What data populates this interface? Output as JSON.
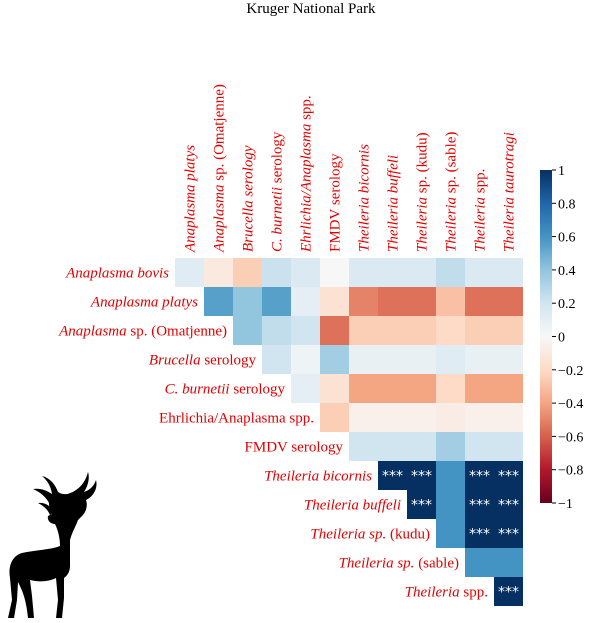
{
  "chart_data": {
    "type": "heatmap",
    "title": "Kruger National Park",
    "columns": [
      [
        {
          "t": "Anaplasma platys",
          "i": true
        }
      ],
      [
        {
          "t": "Anaplasma",
          "i": true
        },
        {
          "t": " sp. (Omatjenne)",
          "i": false
        }
      ],
      [
        {
          "t": "Brucella serology",
          "i": true
        }
      ],
      [
        {
          "t": "C. burnetii",
          "i": true
        },
        {
          "t": " serology",
          "i": false
        }
      ],
      [
        {
          "t": "Ehrlichia/Anaplasma",
          "i": true
        },
        {
          "t": " spp.",
          "i": false
        }
      ],
      [
        {
          "t": "FMDV serology",
          "i": false
        }
      ],
      [
        {
          "t": "Theileria bicornis",
          "i": true
        }
      ],
      [
        {
          "t": "Theileria buffeli",
          "i": true
        }
      ],
      [
        {
          "t": "Theileria",
          "i": true
        },
        {
          "t": " sp. (kudu)",
          "i": false
        }
      ],
      [
        {
          "t": "Theileria",
          "i": true
        },
        {
          "t": " sp. (sable)",
          "i": false
        }
      ],
      [
        {
          "t": "Theileria",
          "i": true
        },
        {
          "t": " spp.",
          "i": false
        }
      ],
      [
        {
          "t": "Theileria taurotragi",
          "i": true
        }
      ]
    ],
    "rows": [
      [
        {
          "t": "Anaplasma bovis",
          "i": true
        }
      ],
      [
        {
          "t": "Anaplasma platys",
          "i": true
        }
      ],
      [
        {
          "t": "Anaplasma",
          "i": true
        },
        {
          "t": " sp. (Omatjenne)",
          "i": false
        }
      ],
      [
        {
          "t": "Brucella",
          "i": true
        },
        {
          "t": " serology",
          "i": false
        }
      ],
      [
        {
          "t": "C. burnetii",
          "i": true
        },
        {
          "t": " serology",
          "i": false
        }
      ],
      [
        {
          "t": "Ehrlichia/Anaplasma",
          "i": false
        },
        {
          "t": " spp.",
          "i": false
        }
      ],
      [
        {
          "t": "FMDV serology",
          "i": false
        }
      ],
      [
        {
          "t": "Theileria bicornis",
          "i": true
        }
      ],
      [
        {
          "t": "Theileria buffeli",
          "i": true
        }
      ],
      [
        {
          "t": "Theileria sp.",
          "i": true
        },
        {
          "t": " (kudu)",
          "i": false
        }
      ],
      [
        {
          "t": "Theileria sp.",
          "i": true
        },
        {
          "t": " (sable)",
          "i": false
        }
      ],
      [
        {
          "t": "Theileria",
          "i": true
        },
        {
          "t": " spp.",
          "i": false
        }
      ]
    ],
    "values": [
      [
        0.12,
        -0.1,
        -0.25,
        0.22,
        0.15,
        0.0,
        0.15,
        0.15,
        0.15,
        0.25,
        0.15,
        0.15
      ],
      [
        null,
        0.55,
        0.4,
        0.55,
        0.1,
        -0.15,
        -0.5,
        -0.55,
        -0.55,
        -0.3,
        -0.55,
        -0.55
      ],
      [
        null,
        null,
        0.4,
        0.25,
        0.2,
        -0.55,
        -0.25,
        -0.25,
        -0.25,
        -0.2,
        -0.25,
        -0.25
      ],
      [
        null,
        null,
        null,
        0.2,
        0.05,
        0.35,
        0.08,
        0.08,
        0.08,
        0.12,
        0.08,
        0.08
      ],
      [
        null,
        null,
        null,
        null,
        0.1,
        -0.15,
        -0.4,
        -0.4,
        -0.4,
        -0.2,
        -0.4,
        -0.4
      ],
      [
        null,
        null,
        null,
        null,
        null,
        -0.25,
        -0.05,
        -0.05,
        -0.05,
        -0.08,
        -0.05,
        -0.05
      ],
      [
        null,
        null,
        null,
        null,
        null,
        null,
        0.2,
        0.2,
        0.2,
        0.35,
        0.2,
        0.2
      ],
      [
        null,
        null,
        null,
        null,
        null,
        null,
        null,
        1.0,
        1.0,
        0.6,
        1.0,
        1.0
      ],
      [
        null,
        null,
        null,
        null,
        null,
        null,
        null,
        null,
        1.0,
        0.6,
        1.0,
        1.0
      ],
      [
        null,
        null,
        null,
        null,
        null,
        null,
        null,
        null,
        null,
        0.6,
        1.0,
        1.0
      ],
      [
        null,
        null,
        null,
        null,
        null,
        null,
        null,
        null,
        null,
        null,
        0.6,
        0.6
      ],
      [
        null,
        null,
        null,
        null,
        null,
        null,
        null,
        null,
        null,
        null,
        null,
        1.0
      ]
    ],
    "stars": [
      [
        null,
        null,
        null,
        null,
        null,
        null,
        null,
        null,
        null,
        null,
        null,
        null
      ],
      [
        null,
        null,
        null,
        null,
        null,
        null,
        null,
        null,
        null,
        null,
        null,
        null
      ],
      [
        null,
        null,
        null,
        null,
        null,
        null,
        null,
        null,
        null,
        null,
        null,
        null
      ],
      [
        null,
        null,
        null,
        null,
        null,
        null,
        null,
        null,
        null,
        null,
        null,
        null
      ],
      [
        null,
        null,
        null,
        null,
        null,
        null,
        null,
        null,
        null,
        null,
        null,
        null
      ],
      [
        null,
        null,
        null,
        null,
        null,
        null,
        null,
        null,
        null,
        null,
        null,
        null
      ],
      [
        null,
        null,
        null,
        null,
        null,
        null,
        null,
        null,
        null,
        null,
        null,
        null
      ],
      [
        null,
        null,
        null,
        null,
        null,
        null,
        null,
        "***",
        "***",
        null,
        "***",
        "***"
      ],
      [
        null,
        null,
        null,
        null,
        null,
        null,
        null,
        null,
        "***",
        null,
        "***",
        "***"
      ],
      [
        null,
        null,
        null,
        null,
        null,
        null,
        null,
        null,
        null,
        null,
        "***",
        "***"
      ],
      [
        null,
        null,
        null,
        null,
        null,
        null,
        null,
        null,
        null,
        null,
        null,
        null
      ],
      [
        null,
        null,
        null,
        null,
        null,
        null,
        null,
        null,
        null,
        null,
        null,
        "***"
      ]
    ],
    "colorbar": {
      "ticks": [
        "1",
        "0.8",
        "0.6",
        "0.4",
        "0.2",
        "0",
        "−0.2",
        "−0.4",
        "−0.6",
        "−0.8",
        "−1"
      ],
      "range": [
        -1,
        1
      ]
    },
    "colors": {
      "label": "#e00000",
      "negative_end": "#67001f",
      "positive_end": "#053061"
    }
  },
  "icons": {
    "silhouette": "kudu-antelope-silhouette"
  }
}
